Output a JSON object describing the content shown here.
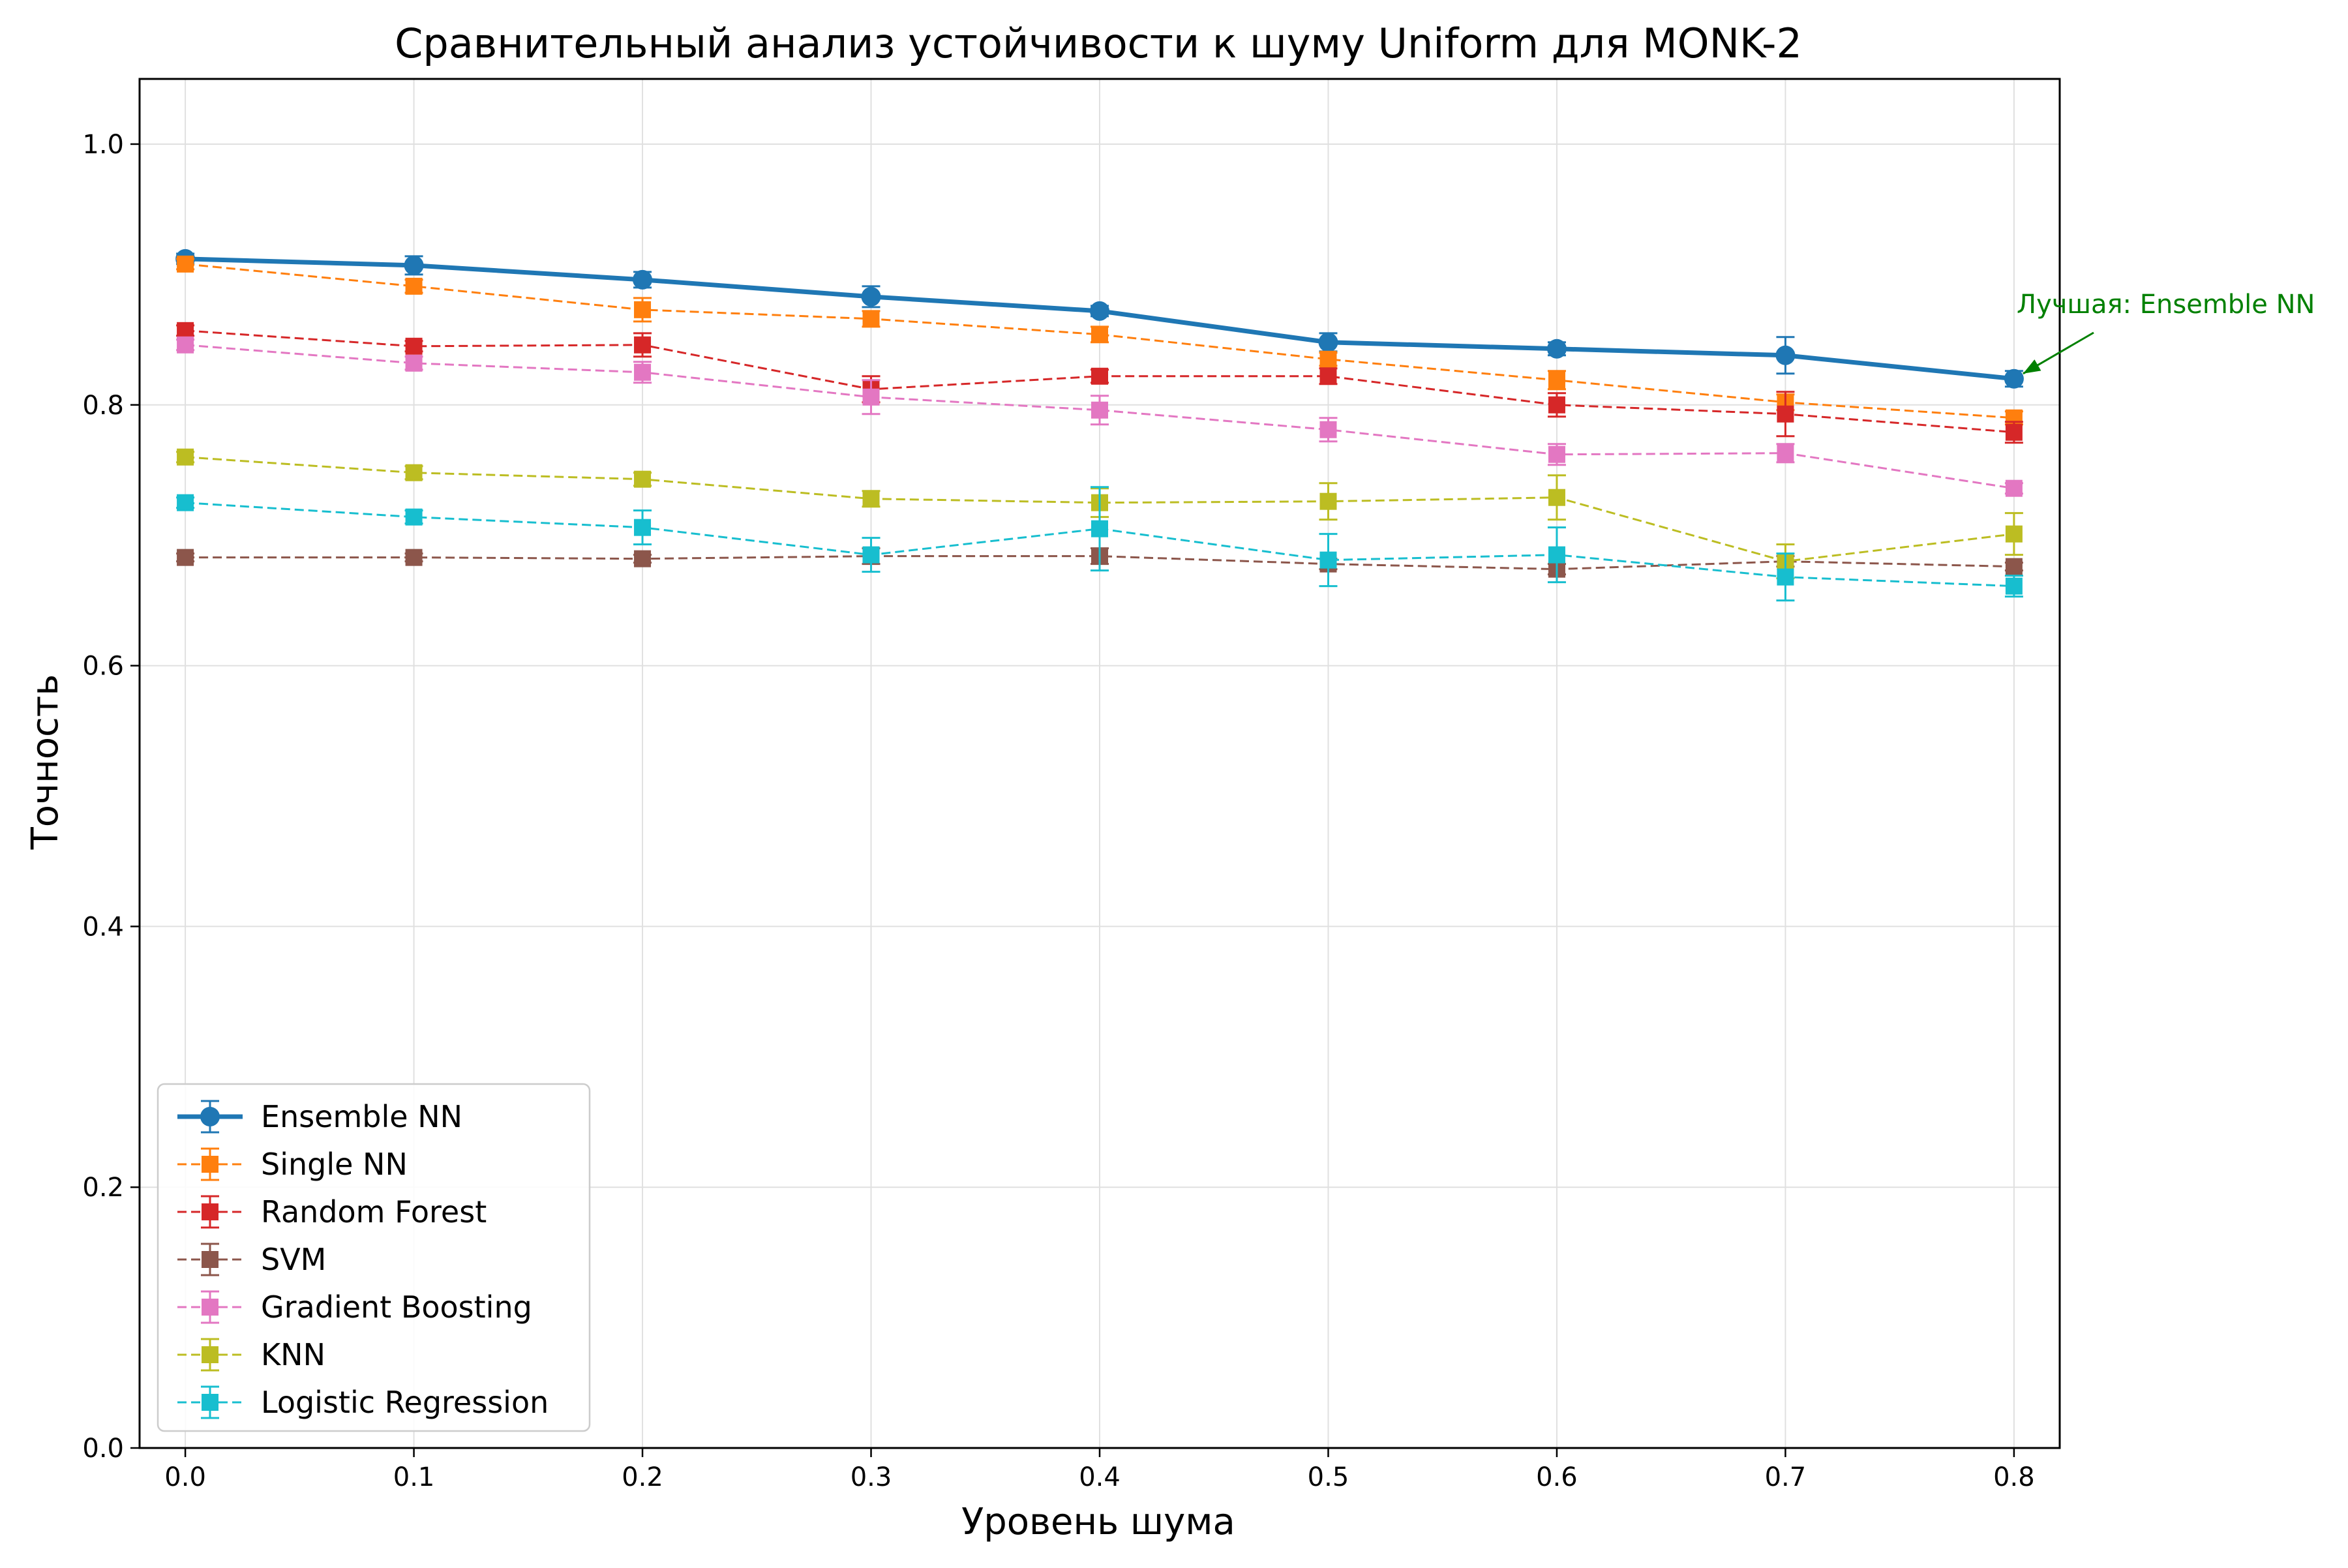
{
  "chart_data": {
    "type": "line",
    "title": "Сравнительный анализ устойчивости к шуму Uniform для MONK-2",
    "xlabel": "Уровень шума",
    "ylabel": "Точность",
    "x": [
      0.0,
      0.1,
      0.2,
      0.3,
      0.4,
      0.5,
      0.6,
      0.7,
      0.8
    ],
    "x_tick_labels": [
      "0.0",
      "0.1",
      "0.2",
      "0.3",
      "0.4",
      "0.5",
      "0.6",
      "0.7",
      "0.8"
    ],
    "y_tick_values": [
      0.0,
      0.2,
      0.4,
      0.6,
      0.8,
      1.0
    ],
    "y_tick_labels": [
      "0.0",
      "0.2",
      "0.4",
      "0.6",
      "0.8",
      "1.0"
    ],
    "xlim": [
      -0.02,
      0.82
    ],
    "ylim": [
      0.0,
      1.05
    ],
    "grid": true,
    "legend_position": "lower-left",
    "series": [
      {
        "name": "Ensemble NN",
        "color": "#1f77b4",
        "style": "solid",
        "marker": "circle",
        "values": [
          0.912,
          0.907,
          0.896,
          0.883,
          0.872,
          0.848,
          0.843,
          0.838,
          0.82
        ],
        "errors": [
          0.004,
          0.007,
          0.006,
          0.008,
          0.004,
          0.007,
          0.005,
          0.014,
          0.006
        ]
      },
      {
        "name": "Single NN",
        "color": "#ff7f0e",
        "style": "dashed",
        "marker": "square",
        "values": [
          0.908,
          0.891,
          0.873,
          0.866,
          0.854,
          0.835,
          0.819,
          0.802,
          0.79
        ],
        "errors": [
          0.004,
          0.005,
          0.009,
          0.006,
          0.006,
          0.005,
          0.007,
          0.006,
          0.005
        ]
      },
      {
        "name": "Random Forest",
        "color": "#d62728",
        "style": "dashed",
        "marker": "square",
        "values": [
          0.857,
          0.845,
          0.846,
          0.812,
          0.822,
          0.822,
          0.8,
          0.793,
          0.779
        ],
        "errors": [
          0.004,
          0.004,
          0.009,
          0.01,
          0.005,
          0.006,
          0.009,
          0.017,
          0.008
        ]
      },
      {
        "name": "SVM",
        "color": "#8c564b",
        "style": "dashed",
        "marker": "square",
        "values": [
          0.683,
          0.683,
          0.682,
          0.684,
          0.684,
          0.678,
          0.674,
          0.68,
          0.676
        ],
        "errors": [
          0.003,
          0.003,
          0.003,
          0.006,
          0.006,
          0.004,
          0.004,
          0.004,
          0.003
        ]
      },
      {
        "name": "Gradient Boosting",
        "color": "#e377c2",
        "style": "dashed",
        "marker": "square",
        "values": [
          0.846,
          0.832,
          0.825,
          0.806,
          0.796,
          0.781,
          0.762,
          0.763,
          0.736
        ],
        "errors": [
          0.004,
          0.005,
          0.008,
          0.013,
          0.011,
          0.009,
          0.008,
          0.007,
          0.004
        ]
      },
      {
        "name": "KNN",
        "color": "#bcbd22",
        "style": "dashed",
        "marker": "square",
        "values": [
          0.76,
          0.748,
          0.743,
          0.728,
          0.725,
          0.726,
          0.729,
          0.68,
          0.701
        ],
        "errors": [
          0.004,
          0.005,
          0.005,
          0.006,
          0.011,
          0.014,
          0.017,
          0.013,
          0.016
        ]
      },
      {
        "name": "Logistic Regression",
        "color": "#17becf",
        "style": "dashed",
        "marker": "square",
        "values": [
          0.725,
          0.714,
          0.706,
          0.685,
          0.705,
          0.681,
          0.685,
          0.668,
          0.661
        ],
        "errors": [
          0.004,
          0.005,
          0.013,
          0.013,
          0.032,
          0.02,
          0.021,
          0.018,
          0.008
        ]
      }
    ],
    "annotation": {
      "text": "Лучшая: Ensemble NN",
      "x": 0.8,
      "y": 0.82,
      "color": "#008000"
    }
  }
}
